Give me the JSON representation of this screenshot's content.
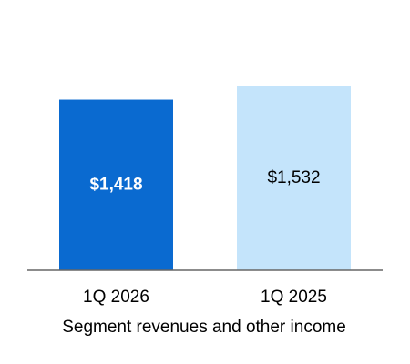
{
  "chart_data": {
    "type": "bar",
    "xlabel": "Segment revenues and other income",
    "categories": [
      "1Q 2026",
      "1Q 2025"
    ],
    "values": [
      1418,
      1532
    ],
    "value_labels": [
      "$1,418",
      "$1,532"
    ],
    "colors": [
      "#0a6ad0",
      "#c4e4fb"
    ]
  }
}
